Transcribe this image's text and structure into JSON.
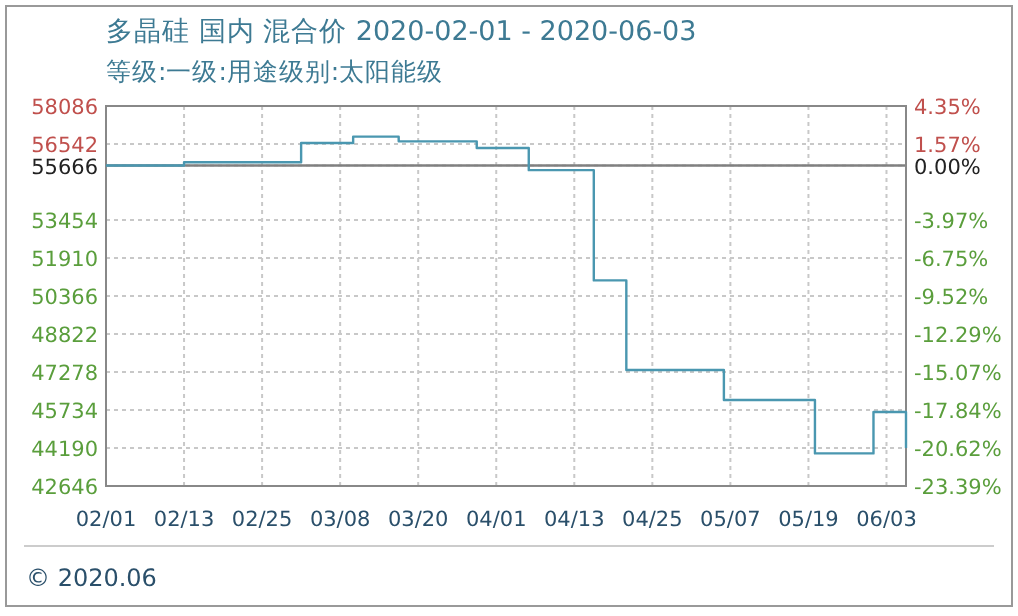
{
  "chart_data": {
    "type": "step",
    "title": "多晶硅 国内 混合价 2020-02-01 - 2020-06-03",
    "subtitle": "等级:一级:用途级别:太阳能级",
    "x": [
      "2020-02-01",
      "2020-02-12",
      "2020-02-13",
      "2020-02-29",
      "2020-03-02",
      "2020-03-09",
      "2020-03-10",
      "2020-03-16",
      "2020-03-17",
      "2020-03-28",
      "2020-03-29",
      "2020-04-05",
      "2020-04-06",
      "2020-04-14",
      "2020-04-16",
      "2020-04-20",
      "2020-04-21",
      "2020-05-05",
      "2020-05-06",
      "2020-05-19",
      "2020-05-20",
      "2020-05-28",
      "2020-05-29",
      "2020-06-01",
      "2020-06-03"
    ],
    "series": [
      {
        "color": "#4a97b0",
        "values": [
          55666,
          55666,
          55800,
          55800,
          56580,
          56580,
          56840,
          56840,
          56650,
          56650,
          56380,
          56380,
          55480,
          55480,
          51000,
          51000,
          47360,
          47360,
          46140,
          46140,
          43970,
          43970,
          45650,
          45650,
          44190
        ]
      }
    ],
    "xlim": [
      "2020-02-01",
      "2020-06-03"
    ],
    "xticks": [
      {
        "value": "2020-02-01",
        "label": "02/01"
      },
      {
        "value": "2020-02-13",
        "label": "02/13"
      },
      {
        "value": "2020-02-25",
        "label": "02/25"
      },
      {
        "value": "2020-03-08",
        "label": "03/08"
      },
      {
        "value": "2020-03-20",
        "label": "03/20"
      },
      {
        "value": "2020-04-01",
        "label": "04/01"
      },
      {
        "value": "2020-04-13",
        "label": "04/13"
      },
      {
        "value": "2020-04-25",
        "label": "04/25"
      },
      {
        "value": "2020-05-07",
        "label": "05/07"
      },
      {
        "value": "2020-05-19",
        "label": "05/19"
      },
      {
        "value": "2020-05-31",
        "label": "06/03"
      }
    ],
    "ylim": [
      42646,
      58086
    ],
    "yticks": [
      42646,
      44190,
      45734,
      47278,
      48822,
      50366,
      51910,
      53454,
      55666,
      56542,
      58086
    ],
    "y2lim": [
      -23.39,
      4.35
    ],
    "y2ticks": [
      {
        "value": -23.39,
        "label": "-23.39%"
      },
      {
        "value": -20.62,
        "label": "-20.62%"
      },
      {
        "value": -17.84,
        "label": "-17.84%"
      },
      {
        "value": -15.07,
        "label": "-15.07%"
      },
      {
        "value": -12.29,
        "label": "-12.29%"
      },
      {
        "value": -9.52,
        "label": "-9.52%"
      },
      {
        "value": -6.75,
        "label": "-6.75%"
      },
      {
        "value": -3.97,
        "label": "-3.97%"
      },
      {
        "value": 0,
        "label": "0.00%"
      },
      {
        "value": 1.57,
        "label": "1.57%"
      },
      {
        "value": 4.35,
        "label": "4.35%"
      }
    ],
    "ref_lines": [
      {
        "axis": "y",
        "value": 55666,
        "color": "#808080"
      }
    ],
    "grid": true,
    "annotations": [
      "© 2020.06"
    ]
  }
}
